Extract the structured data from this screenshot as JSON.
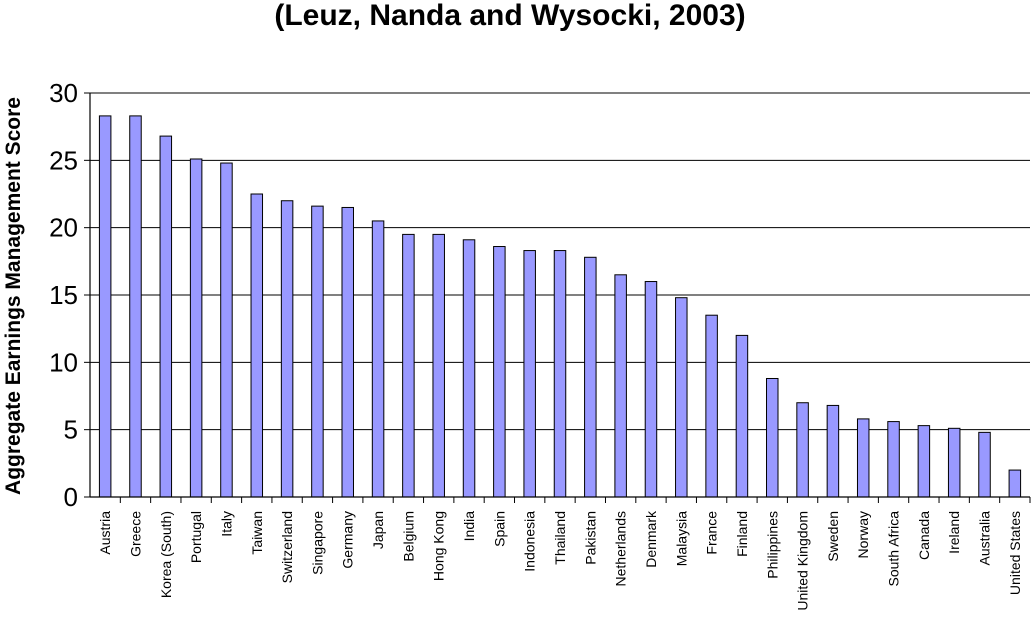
{
  "chart_data": {
    "type": "bar",
    "title": "(Leuz, Nanda and Wysocki, 2003)",
    "xlabel": "",
    "ylabel": "Aggregate Earnings Management Score",
    "ylim": [
      0,
      30
    ],
    "yticks": [
      "0",
      "5",
      "10",
      "15",
      "20",
      "25",
      "30"
    ],
    "grid": true,
    "legend": "none",
    "bar_color": "#9999ff",
    "categories": [
      "Austria",
      "Greece",
      "Korea (South)",
      "Portugal",
      "Italy",
      "Taiwan",
      "Switzerland",
      "Singapore",
      "Germany",
      "Japan",
      "Belgium",
      "Hong Kong",
      "India",
      "Spain",
      "Indonesia",
      "Thailand",
      "Pakistan",
      "Netherlands",
      "Denmark",
      "Malaysia",
      "France",
      "Finland",
      "Philippines",
      "United Kingdom",
      "Sweden",
      "Norway",
      "South Africa",
      "Canada",
      "Ireland",
      "Australia",
      "United States"
    ],
    "values": [
      28.3,
      28.3,
      26.8,
      25.1,
      24.8,
      22.5,
      22.0,
      21.6,
      21.5,
      20.5,
      19.5,
      19.5,
      19.1,
      18.6,
      18.3,
      18.3,
      17.8,
      16.5,
      16.0,
      14.8,
      13.5,
      12.0,
      8.8,
      7.0,
      6.8,
      5.8,
      5.6,
      5.3,
      5.1,
      4.8,
      2.0
    ]
  }
}
